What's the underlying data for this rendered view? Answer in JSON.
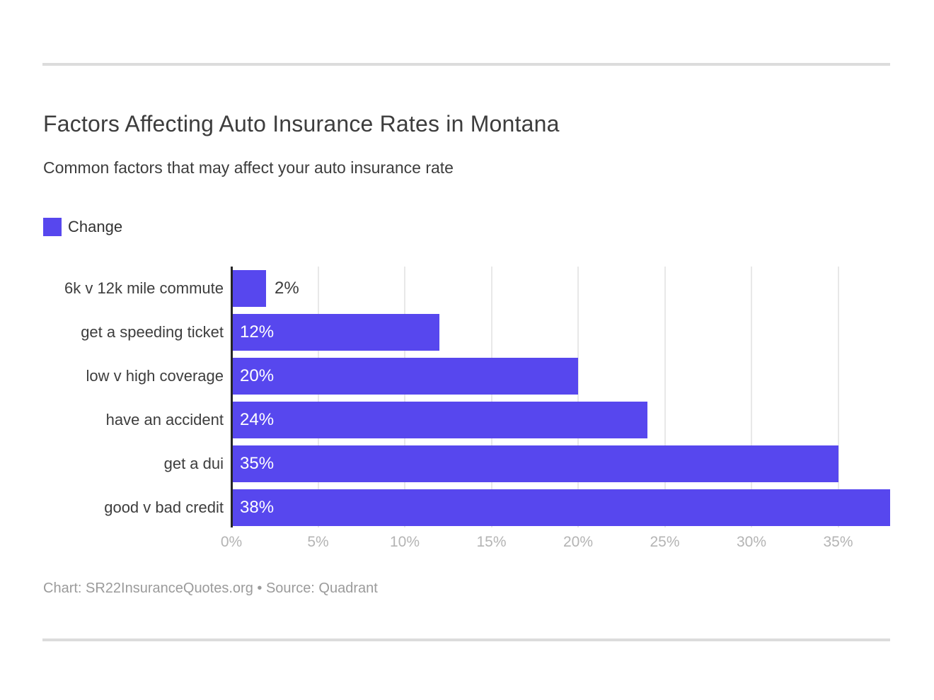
{
  "header": {
    "title": "Factors Affecting Auto Insurance Rates in Montana",
    "subtitle": "Common factors that may affect your auto insurance rate"
  },
  "legend": {
    "label": "Change",
    "color": "#5747ee"
  },
  "chart_data": {
    "type": "bar",
    "orientation": "horizontal",
    "title": "Factors Affecting Auto Insurance Rates in Montana",
    "subtitle": "Common factors that may affect your auto insurance rate",
    "legend_entries": [
      "Change"
    ],
    "legend_position": "top-left",
    "categories": [
      "6k v 12k mile commute",
      "get a speeding ticket",
      "low v high coverage",
      "have an accident",
      "get a dui",
      "good v bad credit"
    ],
    "values": [
      2,
      12,
      20,
      24,
      35,
      38
    ],
    "value_labels": [
      "2%",
      "12%",
      "20%",
      "24%",
      "35%",
      "38%"
    ],
    "xlabel": "",
    "ylabel": "",
    "xlim": [
      0,
      38
    ],
    "x_ticks": [
      0,
      5,
      10,
      15,
      20,
      25,
      30,
      35
    ],
    "x_tick_labels": [
      "0%",
      "5%",
      "10%",
      "15%",
      "20%",
      "25%",
      "30%",
      "35%"
    ],
    "grid": "vertical",
    "bar_color": "#5747ee"
  },
  "footer": {
    "credit": "Chart: SR22InsuranceQuotes.org • Source: Quadrant"
  },
  "colors": {
    "bar": "#5747ee",
    "title_text": "#3d3d3d",
    "tick_text": "#b4b4b4",
    "footer_text": "#9b9b9b",
    "divider": "#dcdcdc",
    "gridline": "#e8e8e8",
    "axis_line": "#262626",
    "background": "#ffffff"
  }
}
